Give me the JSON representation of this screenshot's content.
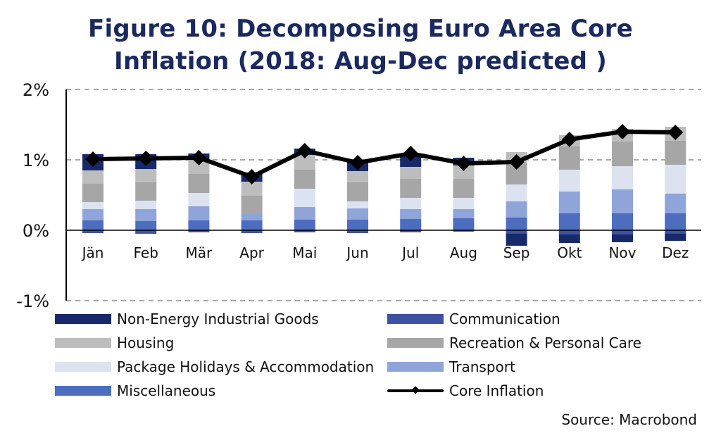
{
  "title_line1": "Figure 10: Decomposing Euro Area Core",
  "title_line2": "Inflation (2018: Aug-Dec predicted )",
  "source": "Source: Macrobond",
  "chart_data": {
    "type": "bar",
    "subtype": "stacked bar with line overlay",
    "title": "Figure 10: Decomposing Euro Area Core Inflation (2018: Aug-Dec predicted )",
    "xlabel": "",
    "ylabel": "",
    "ylim": [
      -1,
      2
    ],
    "yticks": [
      2,
      1,
      0,
      -1
    ],
    "ytick_labels": [
      "2%",
      "1%",
      "0%",
      "-1%"
    ],
    "grid": "dashed horizontal",
    "legend_position": "bottom",
    "categories": [
      "Jän",
      "Feb",
      "Mär",
      "Apr",
      "Mai",
      "Jun",
      "Jul",
      "Aug",
      "Sep",
      "Okt",
      "Nov",
      "Dez"
    ],
    "series": [
      {
        "name": "Miscellaneous",
        "color": "#4e6dc1",
        "values": [
          0.14,
          0.13,
          0.14,
          0.14,
          0.15,
          0.15,
          0.16,
          0.17,
          0.18,
          0.24,
          0.24,
          0.24
        ]
      },
      {
        "name": "Transport",
        "color": "#8fa5d9",
        "values": [
          0.16,
          0.17,
          0.2,
          0.09,
          0.18,
          0.16,
          0.14,
          0.13,
          0.23,
          0.31,
          0.34,
          0.28
        ]
      },
      {
        "name": "Package Holidays & Accommodation",
        "color": "#dde2f0",
        "values": [
          0.1,
          0.12,
          0.19,
          0.0,
          0.26,
          0.1,
          0.16,
          0.16,
          0.24,
          0.31,
          0.33,
          0.41
        ]
      },
      {
        "name": "Recreation & Personal Care",
        "color": "#a6a6a6",
        "values": [
          0.26,
          0.26,
          0.27,
          0.26,
          0.27,
          0.27,
          0.27,
          0.27,
          0.31,
          0.33,
          0.35,
          0.34
        ]
      },
      {
        "name": "Housing",
        "color": "#bdbdbd",
        "values": [
          0.19,
          0.19,
          0.2,
          0.2,
          0.21,
          0.16,
          0.17,
          0.19,
          0.15,
          0.16,
          0.18,
          0.2
        ]
      },
      {
        "name": "Communication",
        "color": "#3b53a0",
        "values": [
          -0.04,
          -0.05,
          -0.03,
          -0.04,
          -0.03,
          -0.04,
          -0.03,
          -0.02,
          -0.05,
          -0.06,
          -0.06,
          -0.05
        ]
      },
      {
        "name": "Non-Energy Industrial Goods",
        "color": "#17296a",
        "values": [
          0.23,
          0.21,
          0.09,
          0.13,
          0.09,
          0.16,
          0.15,
          0.11,
          -0.17,
          -0.12,
          -0.11,
          -0.1
        ]
      }
    ],
    "line": {
      "name": "Core Inflation",
      "color": "#000000",
      "values": [
        1.01,
        1.02,
        1.03,
        0.76,
        1.13,
        0.96,
        1.09,
        0.95,
        0.97,
        1.29,
        1.4,
        1.39
      ]
    },
    "legend_order": [
      "Non-Energy Industrial Goods",
      "Communication",
      "Housing",
      "Recreation & Personal Care",
      "Package Holidays & Accommodation",
      "Transport",
      "Miscellaneous",
      "Core Inflation"
    ]
  }
}
